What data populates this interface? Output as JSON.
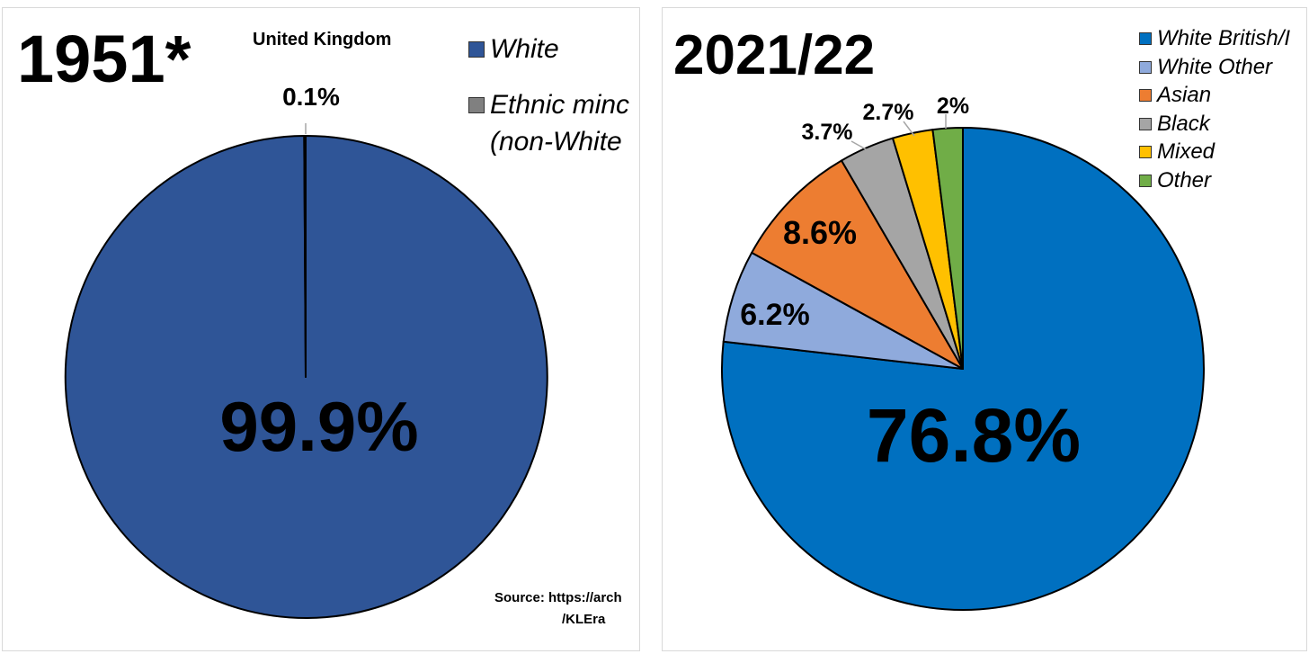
{
  "chart_data": [
    {
      "type": "pie",
      "title": "1951*",
      "subtitle": "United Kingdom",
      "categories": [
        "White",
        "Ethnic minority (non-White)"
      ],
      "legend_lines": [
        [
          "White"
        ],
        [
          "Ethnic minc",
          "(non-White"
        ]
      ],
      "values": [
        99.9,
        0.1
      ],
      "labels": [
        "99.9%",
        "0.1%"
      ],
      "colors": [
        "#2F5597",
        "#808080"
      ],
      "legend_position": "top-right",
      "source_lines": [
        "Source: https://arch",
        "/KLEra"
      ]
    },
    {
      "type": "pie",
      "title": "2021/22",
      "categories": [
        "White British/Irish",
        "White Other",
        "Asian",
        "Black",
        "Mixed",
        "Other"
      ],
      "legend_lines": [
        [
          "White British/I"
        ],
        [
          "White Other"
        ],
        [
          "Asian"
        ],
        [
          "Black"
        ],
        [
          "Mixed"
        ],
        [
          "Other"
        ]
      ],
      "values": [
        76.8,
        6.2,
        8.6,
        3.7,
        2.7,
        2.0
      ],
      "labels": [
        "76.8%",
        "6.2%",
        "8.6%",
        "3.7%",
        "2.7%",
        "2%"
      ],
      "colors": [
        "#0070C0",
        "#8FAADC",
        "#ED7D31",
        "#A5A5A5",
        "#FFC000",
        "#70AD47"
      ],
      "legend_position": "top-right"
    }
  ]
}
